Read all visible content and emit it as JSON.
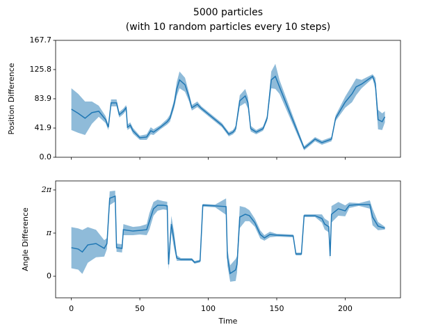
{
  "chart_data": [
    {
      "type": "line",
      "title": "5000 particles",
      "subtitle": "(with 10 random particles every 10 steps)",
      "ylabel": "Position Difference",
      "color": "#1f77b4",
      "band_color": "#8fbbd9",
      "xlim": [
        -11.5,
        240.4
      ],
      "xticks": [
        0,
        50,
        100,
        150,
        200
      ],
      "ylim": [
        0,
        167.7
      ],
      "yticks": [
        {
          "value": 0,
          "label": "0.0"
        },
        41.9,
        83.9,
        125.8,
        167.7
      ],
      "x": [
        0,
        5,
        10,
        15,
        20,
        25,
        27,
        29,
        33,
        35,
        38,
        40,
        41,
        43,
        45,
        50,
        55,
        58,
        60,
        65,
        70,
        72,
        75,
        77,
        79,
        83,
        86,
        88,
        92,
        95,
        110,
        115,
        118,
        120,
        123,
        127,
        129,
        131,
        135,
        140,
        143,
        146,
        149,
        152,
        170,
        175,
        178,
        183,
        190,
        193,
        200,
        205,
        208,
        212,
        220,
        222,
        224,
        227,
        229
      ],
      "values": [
        69,
        63,
        56,
        64,
        66,
        54,
        43,
        78,
        78,
        61,
        66,
        71,
        43,
        46,
        38,
        28,
        29,
        38,
        36,
        43,
        51,
        56,
        76,
        98,
        111,
        104,
        86,
        71,
        76,
        70,
        46,
        33,
        36,
        41,
        81,
        88,
        78,
        41,
        36,
        41,
        56,
        111,
        116,
        101,
        13,
        21,
        26,
        21,
        26,
        56,
        79,
        91,
        101,
        105,
        116,
        106,
        54,
        51,
        58
      ],
      "lower": [
        39,
        35,
        32,
        48,
        58,
        49,
        39,
        73,
        73,
        57,
        62,
        67,
        39,
        42,
        34,
        25,
        25,
        33,
        32,
        40,
        47,
        51,
        70,
        88,
        99,
        94,
        80,
        67,
        72,
        67,
        43,
        30,
        33,
        37,
        73,
        78,
        70,
        37,
        33,
        38,
        52,
        99,
        98,
        91,
        10,
        18,
        23,
        18,
        23,
        52,
        71,
        79,
        89,
        99,
        113,
        98,
        40,
        39,
        50
      ],
      "upper": [
        99,
        91,
        80,
        80,
        74,
        59,
        47,
        83,
        83,
        65,
        70,
        75,
        47,
        50,
        42,
        31,
        33,
        43,
        40,
        46,
        55,
        61,
        82,
        108,
        123,
        114,
        92,
        75,
        80,
        73,
        49,
        36,
        39,
        45,
        89,
        98,
        86,
        45,
        39,
        44,
        60,
        123,
        134,
        111,
        16,
        24,
        29,
        24,
        29,
        60,
        87,
        103,
        113,
        111,
        119,
        114,
        68,
        63,
        66
      ]
    },
    {
      "type": "line",
      "ylabel": "Angle Difference",
      "xlabel": "Time",
      "color": "#1f77b4",
      "band_color": "#8fbbd9",
      "xlim": [
        -11.5,
        240.4
      ],
      "xticks": [
        0,
        50,
        100,
        150,
        200
      ],
      "ylim": [
        -1.57,
        6.94
      ],
      "yticks": [
        0,
        {
          "value": 3.1416,
          "label": "π"
        },
        {
          "value": 6.2832,
          "label": "2π"
        }
      ],
      "x": [
        0,
        5,
        8,
        12,
        18,
        24,
        26,
        28,
        32,
        33,
        37,
        38,
        45,
        50,
        55,
        57,
        60,
        63,
        67,
        70,
        71,
        73,
        75,
        77,
        80,
        88,
        90,
        94,
        96,
        105,
        113,
        114,
        116,
        120,
        121,
        123,
        127,
        130,
        134,
        138,
        141,
        145,
        150,
        162,
        164,
        168,
        170,
        178,
        183,
        185,
        188,
        189,
        190,
        195,
        200,
        203,
        210,
        218,
        220,
        224,
        229
      ],
      "values": [
        2.08,
        1.98,
        1.77,
        2.28,
        2.38,
        2.03,
        2.38,
        5.68,
        5.83,
        2.08,
        2.03,
        3.39,
        3.29,
        3.34,
        3.39,
        4.0,
        4.91,
        5.17,
        5.17,
        5.12,
        0.86,
        3.8,
        2.63,
        1.32,
        1.22,
        1.22,
        1.01,
        1.11,
        5.17,
        5.12,
        5.07,
        1.37,
        0.2,
        0.46,
        0.86,
        4.31,
        4.51,
        4.41,
        3.9,
        3.04,
        2.79,
        3.04,
        2.99,
        2.94,
        1.62,
        1.62,
        4.41,
        4.41,
        4.2,
        3.8,
        3.6,
        1.47,
        4.51,
        4.91,
        4.76,
        5.17,
        5.22,
        5.22,
        4.31,
        3.65,
        3.5
      ],
      "lower": [
        0.58,
        0.48,
        0.17,
        0.98,
        1.38,
        1.43,
        1.98,
        5.18,
        5.43,
        1.78,
        1.73,
        2.99,
        2.99,
        3.04,
        2.99,
        3.4,
        4.41,
        4.77,
        4.87,
        4.82,
        0.46,
        3.2,
        2.03,
        1.12,
        1.12,
        1.12,
        0.91,
        1.01,
        5.07,
        5.02,
        4.47,
        0.77,
        -0.4,
        -0.34,
        0.26,
        3.51,
        4.01,
        4.01,
        3.6,
        2.74,
        2.59,
        2.84,
        2.89,
        2.84,
        1.52,
        1.52,
        4.31,
        4.31,
        3.9,
        3.4,
        3.2,
        1.17,
        3.91,
        4.41,
        4.36,
        4.97,
        5.12,
        4.92,
        3.71,
        3.35,
        3.4
      ],
      "upper": [
        3.58,
        3.48,
        3.37,
        3.58,
        3.38,
        2.63,
        2.78,
        6.18,
        6.23,
        2.38,
        2.33,
        3.79,
        3.59,
        3.64,
        3.79,
        4.6,
        5.41,
        5.57,
        5.47,
        5.42,
        1.26,
        4.4,
        3.23,
        1.52,
        1.32,
        1.32,
        1.11,
        1.21,
        5.27,
        5.22,
        5.67,
        1.97,
        0.8,
        1.26,
        1.46,
        5.11,
        5.01,
        4.81,
        4.2,
        3.34,
        2.99,
        3.24,
        3.09,
        3.04,
        1.72,
        1.72,
        4.51,
        4.51,
        4.5,
        4.2,
        4.0,
        1.77,
        5.11,
        5.41,
        5.16,
        5.37,
        5.32,
        5.52,
        4.91,
        3.95,
        3.6
      ]
    }
  ]
}
